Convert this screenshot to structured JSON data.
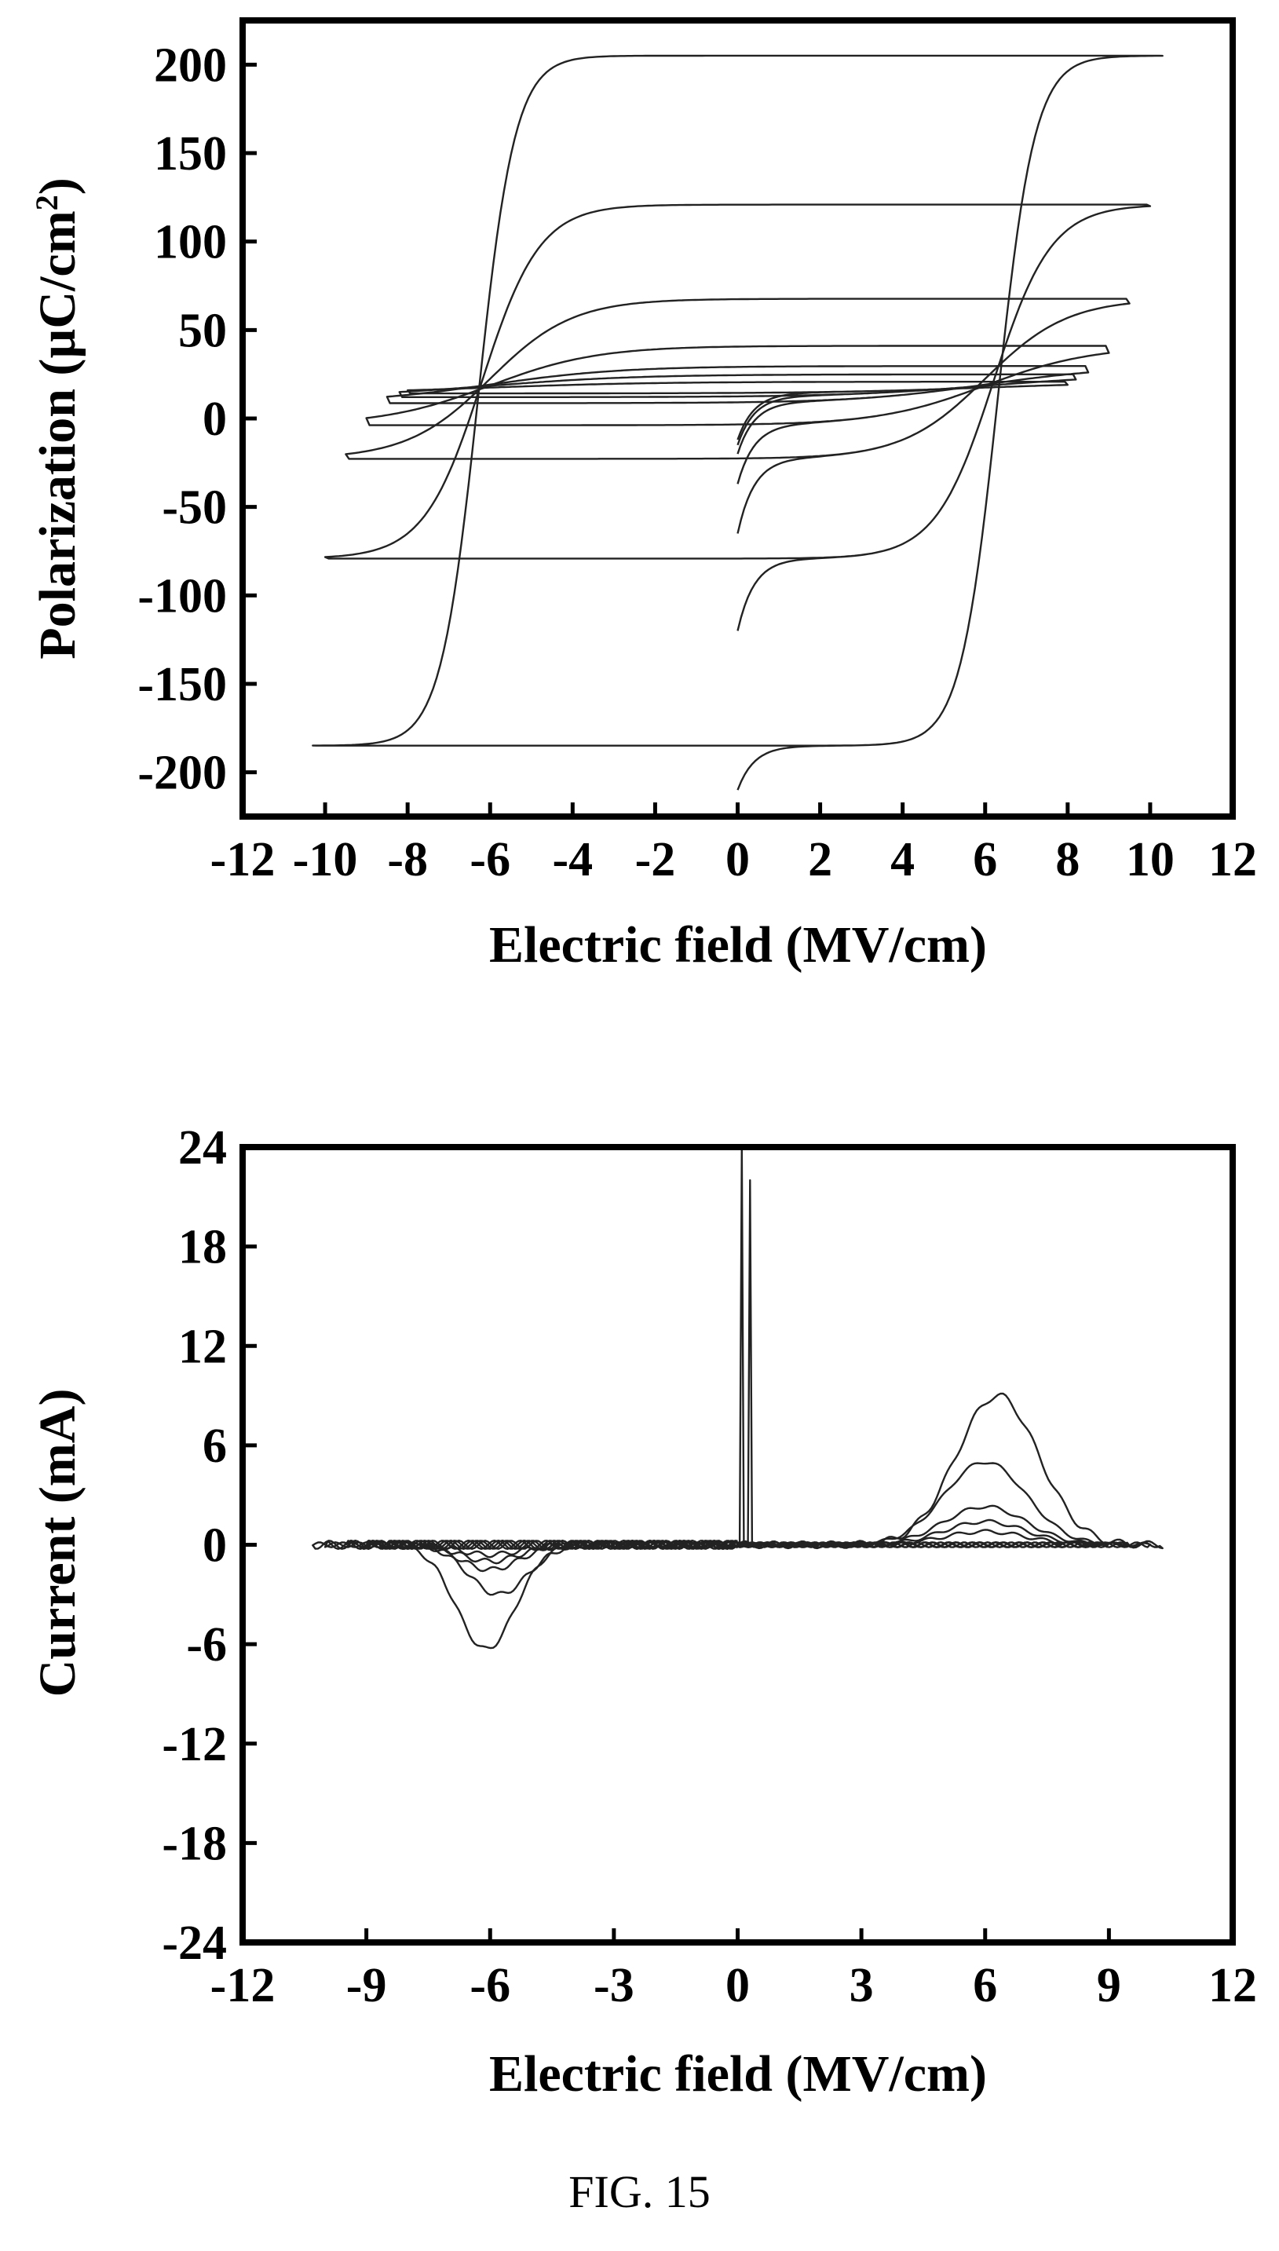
{
  "figure_caption": "FIG. 15",
  "chart_data": [
    {
      "type": "line",
      "title": "",
      "xlabel": "Electric field (MV/cm)",
      "ylabel_main": "Polarization (µC/cm",
      "ylabel_sup": "2",
      "ylabel_close": ")",
      "xlim": [
        -12,
        12
      ],
      "ylim": [
        -225,
        225
      ],
      "xticks": [
        -12,
        -10,
        -8,
        -6,
        -4,
        -2,
        0,
        2,
        4,
        6,
        8,
        10,
        12
      ],
      "yticks": [
        200,
        150,
        100,
        50,
        0,
        -50,
        -100,
        -150,
        -200
      ],
      "xtick_labels": [
        "-12",
        "-10",
        "-8",
        "-6",
        "-4",
        "-2",
        "0",
        "2",
        "4",
        "6",
        "8",
        "10",
        "12"
      ],
      "ytick_labels": [
        "200",
        "150",
        "100",
        "50",
        "0",
        "-50",
        "-100",
        "-150",
        "-200"
      ],
      "grid": false,
      "legend": "none",
      "series": [
        {
          "emax": 10.3,
          "pmax": 205,
          "pr": 195,
          "ec": 6.3,
          "w": 0.9,
          "pstart": -210
        },
        {
          "emax": 10.0,
          "pmax": 120,
          "pr": 100,
          "ec": 6.2,
          "w": 1.4,
          "pstart": -120
        },
        {
          "emax": 9.5,
          "pmax": 65,
          "pr": 45,
          "ec": 6.0,
          "w": 2.0,
          "pstart": -65
        },
        {
          "emax": 9.0,
          "pmax": 37,
          "pr": 22,
          "ec": 6.0,
          "w": 2.6,
          "pstart": -37
        },
        {
          "emax": 8.5,
          "pmax": 26,
          "pr": 10,
          "ec": 6.0,
          "w": 3.2,
          "pstart": -20
        },
        {
          "emax": 8.2,
          "pmax": 22,
          "pr": 6,
          "ec": 6.0,
          "w": 3.6,
          "pstart": -15
        },
        {
          "emax": 8.0,
          "pmax": 19,
          "pr": 3,
          "ec": 6.0,
          "w": 4.0,
          "pstart": -12
        }
      ]
    },
    {
      "type": "line",
      "title": "",
      "xlabel": "Electric field (MV/cm)",
      "ylabel": "Current (mA)",
      "xlim": [
        -12,
        12
      ],
      "ylim": [
        -24,
        24
      ],
      "xticks": [
        -12,
        -9,
        -6,
        -3,
        0,
        3,
        6,
        9,
        12
      ],
      "yticks": [
        24,
        18,
        12,
        6,
        0,
        -6,
        -12,
        -18,
        -24
      ],
      "xtick_labels": [
        "-12",
        "-9",
        "-6",
        "-3",
        "0",
        "3",
        "6",
        "9",
        "12"
      ],
      "ytick_labels": [
        "24",
        "18",
        "12",
        "6",
        "0",
        "-6",
        "-12",
        "-18",
        "-24"
      ],
      "grid": false,
      "legend": "none",
      "spike_field": [
        0.1,
        0.3
      ],
      "spike_current": [
        24,
        22
      ],
      "series": [
        {
          "emax": 10.3,
          "pos_peak": 9.0,
          "pos_center": 6.3,
          "neg_peak": -6.3,
          "neg_center": -6.1
        },
        {
          "emax": 10.0,
          "pos_peak": 5.0,
          "pos_center": 6.0,
          "neg_peak": -3.0,
          "neg_center": -5.8
        },
        {
          "emax": 9.5,
          "pos_peak": 2.3,
          "pos_center": 6.0,
          "neg_peak": -1.5,
          "neg_center": -6.0
        },
        {
          "emax": 9.0,
          "pos_peak": 1.4,
          "pos_center": 6.0,
          "neg_peak": -1.0,
          "neg_center": -6.0
        },
        {
          "emax": 8.5,
          "pos_peak": 0.8,
          "pos_center": 6.0,
          "neg_peak": -0.6,
          "neg_center": -6.0
        }
      ]
    }
  ]
}
